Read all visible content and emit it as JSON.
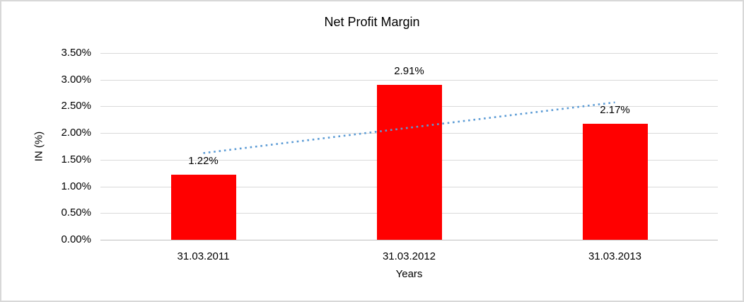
{
  "chart_data": {
    "type": "bar",
    "title": "Net Profit Margin",
    "xlabel": "Years",
    "ylabel": "IN (%)",
    "categories": [
      "31.03.2011",
      "31.03.2012",
      "31.03.2013"
    ],
    "values": [
      1.22,
      2.91,
      2.17
    ],
    "data_labels": [
      "1.22%",
      "2.91%",
      "2.17%"
    ],
    "yticks": [
      {
        "label": "0.00%",
        "value": 0.0
      },
      {
        "label": "0.50%",
        "value": 0.5
      },
      {
        "label": "1.00%",
        "value": 1.0
      },
      {
        "label": "1.50%",
        "value": 1.5
      },
      {
        "label": "2.00%",
        "value": 2.0
      },
      {
        "label": "2.50%",
        "value": 2.5
      },
      {
        "label": "3.00%",
        "value": 3.0
      },
      {
        "label": "3.50%",
        "value": 3.5
      }
    ],
    "ylim": [
      0,
      3.5
    ],
    "grid": true,
    "legend": false,
    "trendline": {
      "type": "linear",
      "start_value": 1.625,
      "end_value": 2.575,
      "style": "dotted"
    },
    "colors": {
      "bar": "#ff0000",
      "trendline": "#5b9bd5",
      "gridline": "#d9d9d9",
      "axis_line": "#bfbfbf",
      "text": "#000000",
      "frame_border": "#d8d8d8"
    }
  }
}
